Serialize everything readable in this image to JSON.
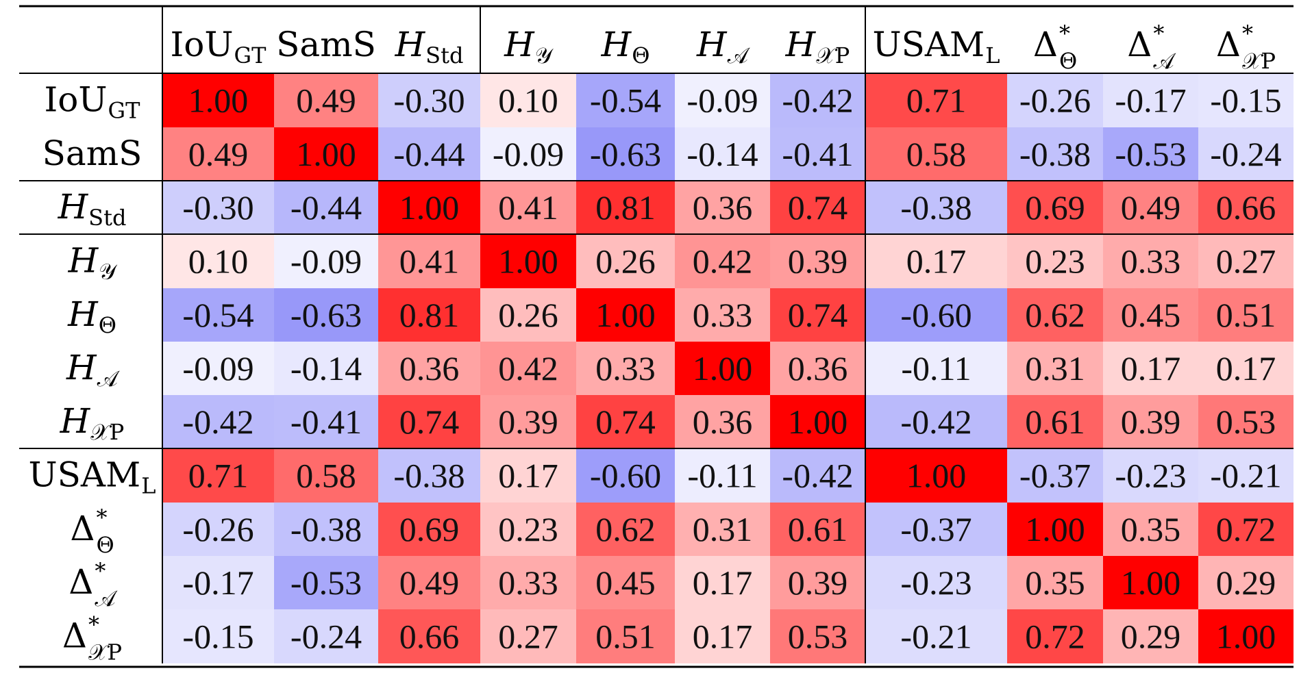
{
  "chart_data": {
    "type": "heatmap",
    "color_scale": {
      "min": -1,
      "mid": 0,
      "max": 1,
      "neg_color": "#5b5bf6",
      "mid_color": "#ffffff",
      "pos_color": "#ff0000"
    },
    "labels": [
      {
        "base": "IoU",
        "sub": "GT",
        "italic": false
      },
      {
        "base": "SamS",
        "sub": "",
        "italic": false
      },
      {
        "base": "H",
        "sub": "Std",
        "italic": true
      },
      {
        "base": "H",
        "sub": "𝒴",
        "italic": true
      },
      {
        "base": "H",
        "sub": "Θ",
        "italic": true
      },
      {
        "base": "H",
        "sub": "𝒜",
        "italic": true
      },
      {
        "base": "H",
        "sub": "𝒳P",
        "italic": true
      },
      {
        "base": "USAM",
        "sub": "L",
        "italic": false
      },
      {
        "base": "Δ",
        "sub": "Θ",
        "sup": "*",
        "italic": false
      },
      {
        "base": "Δ",
        "sub": "𝒜",
        "sup": "*",
        "italic": false
      },
      {
        "base": "Δ",
        "sub": "𝒳P",
        "sup": "*",
        "italic": false
      }
    ],
    "values": [
      [
        1.0,
        0.49,
        -0.3,
        0.1,
        -0.54,
        -0.09,
        -0.42,
        0.71,
        -0.26,
        -0.17,
        -0.15
      ],
      [
        0.49,
        1.0,
        -0.44,
        -0.09,
        -0.63,
        -0.14,
        -0.41,
        0.58,
        -0.38,
        -0.53,
        -0.24
      ],
      [
        -0.3,
        -0.44,
        1.0,
        0.41,
        0.81,
        0.36,
        0.74,
        -0.38,
        0.69,
        0.49,
        0.66
      ],
      [
        0.1,
        -0.09,
        0.41,
        1.0,
        0.26,
        0.42,
        0.39,
        0.17,
        0.23,
        0.33,
        0.27
      ],
      [
        -0.54,
        -0.63,
        0.81,
        0.26,
        1.0,
        0.33,
        0.74,
        -0.6,
        0.62,
        0.45,
        0.51
      ],
      [
        -0.09,
        -0.14,
        0.36,
        0.42,
        0.33,
        1.0,
        0.36,
        -0.11,
        0.31,
        0.17,
        0.17
      ],
      [
        -0.42,
        -0.41,
        0.74,
        0.39,
        0.74,
        0.36,
        1.0,
        -0.42,
        0.61,
        0.39,
        0.53
      ],
      [
        0.71,
        0.58,
        -0.38,
        0.17,
        -0.6,
        -0.11,
        -0.42,
        1.0,
        -0.37,
        -0.23,
        -0.21
      ],
      [
        -0.26,
        -0.38,
        0.69,
        0.23,
        0.62,
        0.31,
        0.61,
        -0.37,
        1.0,
        0.35,
        0.72
      ],
      [
        -0.17,
        -0.53,
        0.49,
        0.33,
        0.45,
        0.17,
        0.39,
        -0.23,
        0.35,
        1.0,
        0.29
      ],
      [
        -0.15,
        -0.24,
        0.66,
        0.27,
        0.51,
        0.17,
        0.53,
        -0.21,
        0.72,
        0.29,
        1.0
      ]
    ]
  }
}
